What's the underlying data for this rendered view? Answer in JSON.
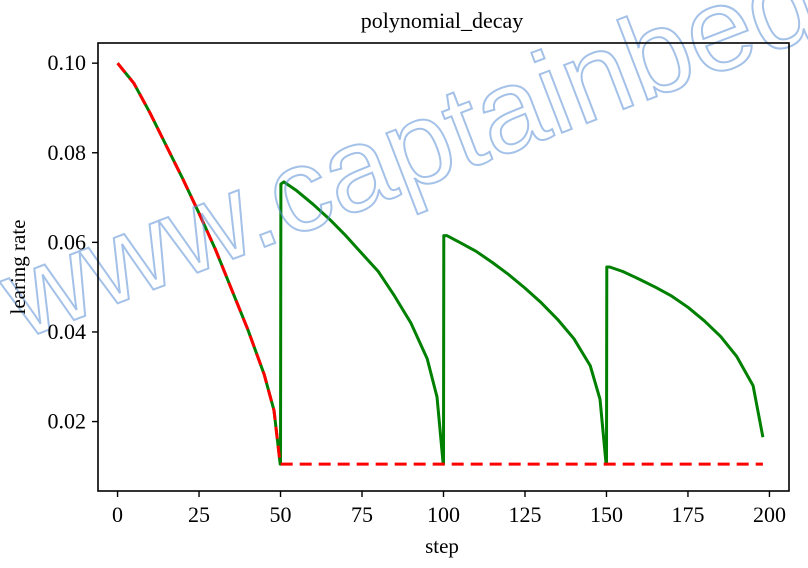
{
  "chart_data": {
    "type": "line",
    "title": "polynomial_decay",
    "xlabel": "step",
    "ylabel": "learing rate",
    "xlim": [
      -6,
      206
    ],
    "ylim": [
      0.0045,
      0.1045
    ],
    "xticks": [
      0,
      25,
      50,
      75,
      100,
      125,
      150,
      175,
      200
    ],
    "yticks": [
      0.02,
      0.04,
      0.06,
      0.08,
      0.1
    ],
    "ytick_labels": [
      "0.02",
      "0.04",
      "0.06",
      "0.08",
      "0.10"
    ],
    "grid": false,
    "legend": "none",
    "series": [
      {
        "color": "#008000",
        "style": "solid",
        "x": [
          0,
          5,
          10,
          15,
          20,
          25,
          30,
          35,
          40,
          45,
          48,
          49.9,
          50,
          50.1,
          51,
          55,
          60,
          65,
          70,
          75,
          80,
          85,
          90,
          95,
          98,
          99.9,
          100,
          100.1,
          101,
          105,
          110,
          115,
          120,
          125,
          130,
          135,
          140,
          145,
          148,
          149.9,
          150,
          150.1,
          151,
          155,
          160,
          165,
          170,
          175,
          180,
          185,
          190,
          195,
          198
        ],
        "y": [
          0.1,
          0.0955,
          0.0888,
          0.0815,
          0.0742,
          0.0665,
          0.0585,
          0.0495,
          0.0405,
          0.0305,
          0.0225,
          0.0105,
          0.0105,
          0.073,
          0.0735,
          0.0715,
          0.0685,
          0.0652,
          0.0615,
          0.0575,
          0.0535,
          0.048,
          0.042,
          0.034,
          0.0255,
          0.0105,
          0.0105,
          0.0615,
          0.0615,
          0.06,
          0.058,
          0.0555,
          0.0528,
          0.0498,
          0.0465,
          0.0428,
          0.0385,
          0.0325,
          0.025,
          0.0105,
          0.0105,
          0.0545,
          0.0545,
          0.0535,
          0.0518,
          0.05,
          0.048,
          0.0455,
          0.0425,
          0.039,
          0.0345,
          0.028,
          0.0165
        ]
      },
      {
        "color": "#ff0000",
        "style": "dashed",
        "x": [
          0,
          5,
          10,
          15,
          20,
          25,
          30,
          35,
          40,
          45,
          48,
          49.9,
          50,
          75,
          100,
          125,
          150,
          175,
          198
        ],
        "y": [
          0.1,
          0.0955,
          0.0888,
          0.0815,
          0.0742,
          0.0665,
          0.0585,
          0.0495,
          0.0405,
          0.0305,
          0.0225,
          0.0105,
          0.0105,
          0.0105,
          0.0105,
          0.0105,
          0.0105,
          0.0105,
          0.0105
        ]
      }
    ]
  },
  "watermark": {
    "text": "www.captainbed.net",
    "color": "#5b8fd6"
  }
}
